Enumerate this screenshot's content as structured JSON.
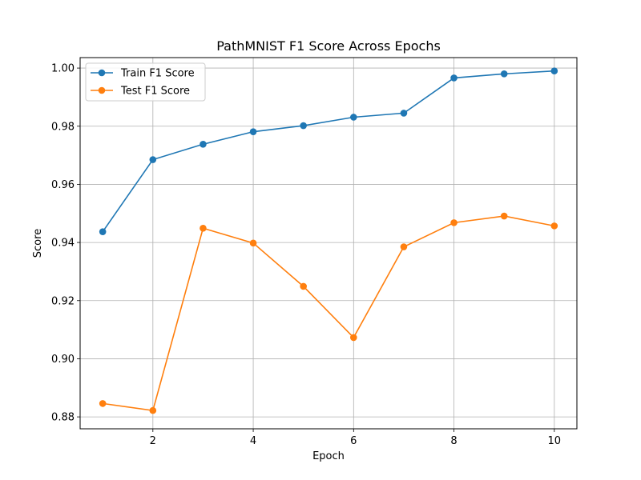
{
  "chart_data": {
    "type": "line",
    "title": "PathMNIST F1 Score Across Epochs",
    "xlabel": "Epoch",
    "ylabel": "Score",
    "x": [
      1,
      2,
      3,
      4,
      5,
      6,
      7,
      8,
      9,
      10
    ],
    "xlim": [
      0.55,
      10.45
    ],
    "ylim": [
      0.8759,
      1.0036
    ],
    "xticks": [
      2,
      4,
      6,
      8,
      10
    ],
    "xtick_labels": [
      "2",
      "4",
      "6",
      "8",
      "10"
    ],
    "yticks": [
      0.88,
      0.9,
      0.92,
      0.94,
      0.96,
      0.98,
      1.0
    ],
    "ytick_labels": [
      "0.88",
      "0.90",
      "0.92",
      "0.94",
      "0.96",
      "0.98",
      "1.00"
    ],
    "grid": true,
    "legend_position": "top-left",
    "series": [
      {
        "name": "Train F1 Score",
        "color": "#1f77b4",
        "marker": "circle",
        "values": [
          0.9437,
          0.9685,
          0.9738,
          0.9781,
          0.9802,
          0.9831,
          0.9845,
          0.9966,
          0.998,
          0.999
        ]
      },
      {
        "name": "Test F1 Score",
        "color": "#ff7f0e",
        "marker": "circle",
        "values": [
          0.8846,
          0.8822,
          0.9449,
          0.9398,
          0.9249,
          0.9073,
          0.9385,
          0.9468,
          0.9491,
          0.9457
        ]
      }
    ]
  }
}
